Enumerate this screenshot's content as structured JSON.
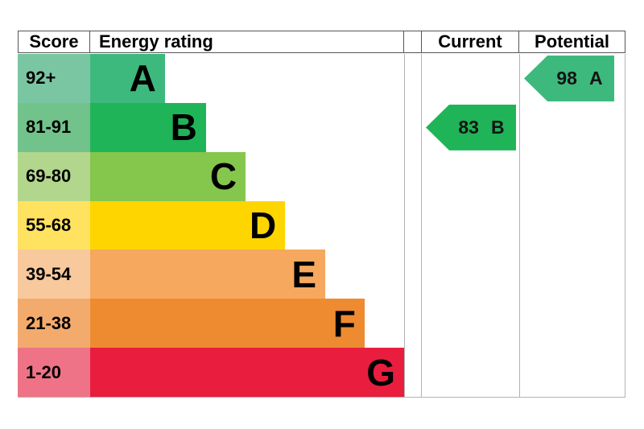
{
  "headers": {
    "score": "Score",
    "rating": "Energy rating",
    "current": "Current",
    "potential": "Potential"
  },
  "bands": [
    {
      "letter": "A",
      "score": "92+",
      "bar_color": "#3db97d",
      "score_color": "#7ac6a3",
      "width_pct": 23.8
    },
    {
      "letter": "B",
      "score": "81-91",
      "bar_color": "#20b458",
      "score_color": "#72c38b",
      "width_pct": 36.9
    },
    {
      "letter": "C",
      "score": "69-80",
      "bar_color": "#85c64d",
      "score_color": "#b2d78c",
      "width_pct": 49.5
    },
    {
      "letter": "D",
      "score": "55-68",
      "bar_color": "#ffd500",
      "score_color": "#ffe25f",
      "width_pct": 62.1
    },
    {
      "letter": "E",
      "score": "39-54",
      "bar_color": "#f6a85e",
      "score_color": "#f8c99c",
      "width_pct": 74.9
    },
    {
      "letter": "F",
      "score": "21-38",
      "bar_color": "#ee8b31",
      "score_color": "#f3ab6d",
      "width_pct": 87.4
    },
    {
      "letter": "G",
      "score": "1-20",
      "bar_color": "#e91d3d",
      "score_color": "#ef7386",
      "width_pct": 100
    }
  ],
  "current": {
    "value": "83",
    "letter": "B",
    "color": "#20b458",
    "band_index": 1
  },
  "potential": {
    "value": "98",
    "letter": "A",
    "color": "#3db97d",
    "band_index": 0
  },
  "border_colors": {
    "header": "#565656",
    "body": "#b3b3b3"
  },
  "chart_data": {
    "type": "bar",
    "title": "Energy rating",
    "categories": [
      "A",
      "B",
      "C",
      "D",
      "E",
      "F",
      "G"
    ],
    "score_ranges": [
      "92+",
      "81-91",
      "69-80",
      "55-68",
      "39-54",
      "21-38",
      "1-20"
    ],
    "bar_width_pct": [
      23.8,
      36.9,
      49.5,
      62.1,
      74.9,
      87.4,
      100
    ],
    "bar_colors": [
      "#3db97d",
      "#20b458",
      "#85c64d",
      "#ffd500",
      "#f6a85e",
      "#ee8b31",
      "#e91d3d"
    ],
    "legend_position": "none",
    "grid": false,
    "current": {
      "score": 83,
      "rating": "B"
    },
    "potential": {
      "score": 98,
      "rating": "A"
    }
  }
}
